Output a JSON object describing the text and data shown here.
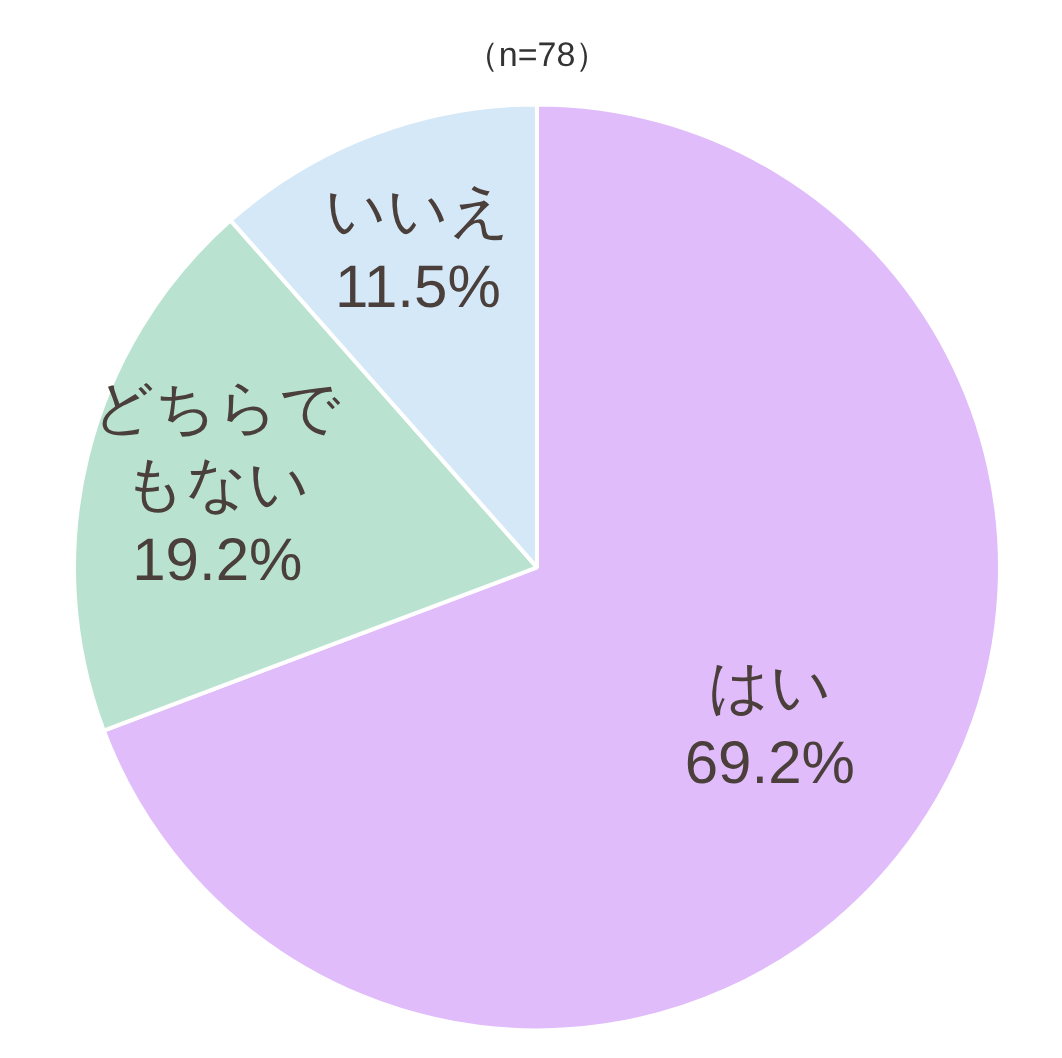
{
  "chart_data": {
    "type": "pie",
    "title": "（n=78）",
    "categories": [
      "はい",
      "どちらでもない",
      "いいえ"
    ],
    "values": [
      69.2,
      19.2,
      11.5
    ],
    "colors": [
      "#e0bcfa",
      "#b9e3d0",
      "#d4e8f7"
    ],
    "value_labels": [
      "69.2%",
      "19.2%",
      "11.5%"
    ],
    "legend": false
  }
}
